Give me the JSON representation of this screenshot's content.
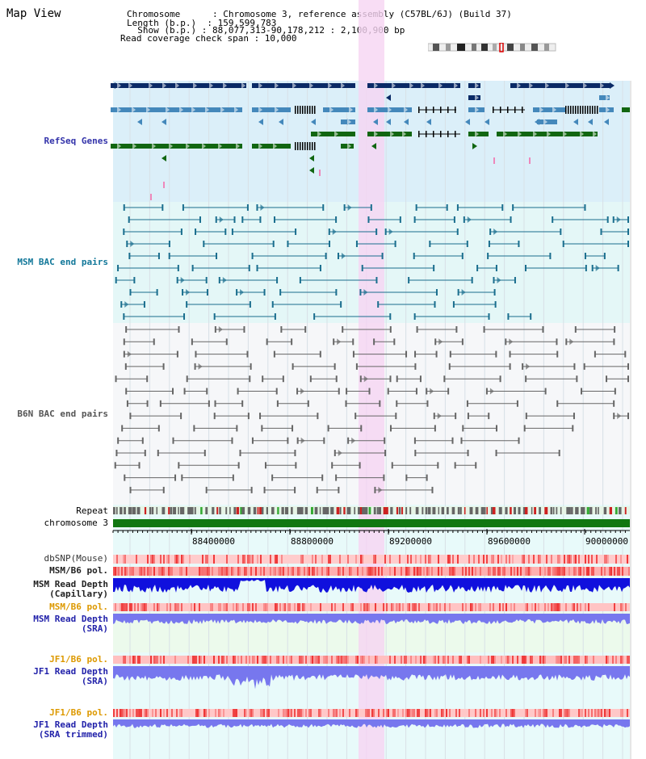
{
  "page": {
    "title": "Map View"
  },
  "info": {
    "chromosome": "Chromosome      : Chromosome 3, reference assembly (C57BL/6J) (Build 37)",
    "length": "Length (b.p.)  : 159,599,783",
    "show": "  Show (b.p.) : 88,077,313-90,178,212 : 2,100,900 bp",
    "coverage": "Read coverage check span : 10,000"
  },
  "tracks": {
    "refseq": "RefSeq Genes",
    "msm_bac": "MSM BAC end pairs",
    "b6n_bac": "B6N BAC end pairs",
    "repeat": "Repeat",
    "chromosome": "chromosome 3",
    "dbsnp": "dbSNP(Mouse)",
    "msm_pol_1": "MSM/B6 pol.",
    "msm_depth_cap_1": "MSM Read Depth",
    "msm_depth_cap_2": "(Capillary)",
    "msm_pol_2": "MSM/B6 pol.",
    "msm_depth_sra_1": "MSM Read Depth",
    "msm_depth_sra_2": "(SRA)",
    "jf1_pol_1": "JF1/B6 pol.",
    "jf1_depth_1": "JF1 Read Depth",
    "jf1_depth_2": "(SRA)",
    "jf1_pol_2": "JF1/B6 pol.",
    "jf1_trim_1": "JF1 Read Depth",
    "jf1_trim_2": "(SRA trimmed)"
  },
  "axis": {
    "ticks": [
      "88400000",
      "88800000",
      "89200000",
      "89600000",
      "90000000"
    ]
  },
  "colors": {
    "gene_dark": "#0a2a66",
    "gene_mid": "#4488bb",
    "gene_green": "#116611",
    "msm_line": "#1a6e8e",
    "b6n_line": "#666666",
    "highlight": "#f6d5f3",
    "chrom_bar": "#117711",
    "depth_dark": "#1010dd",
    "depth_light": "#7777ee",
    "pol_red": "#ee3333"
  }
}
